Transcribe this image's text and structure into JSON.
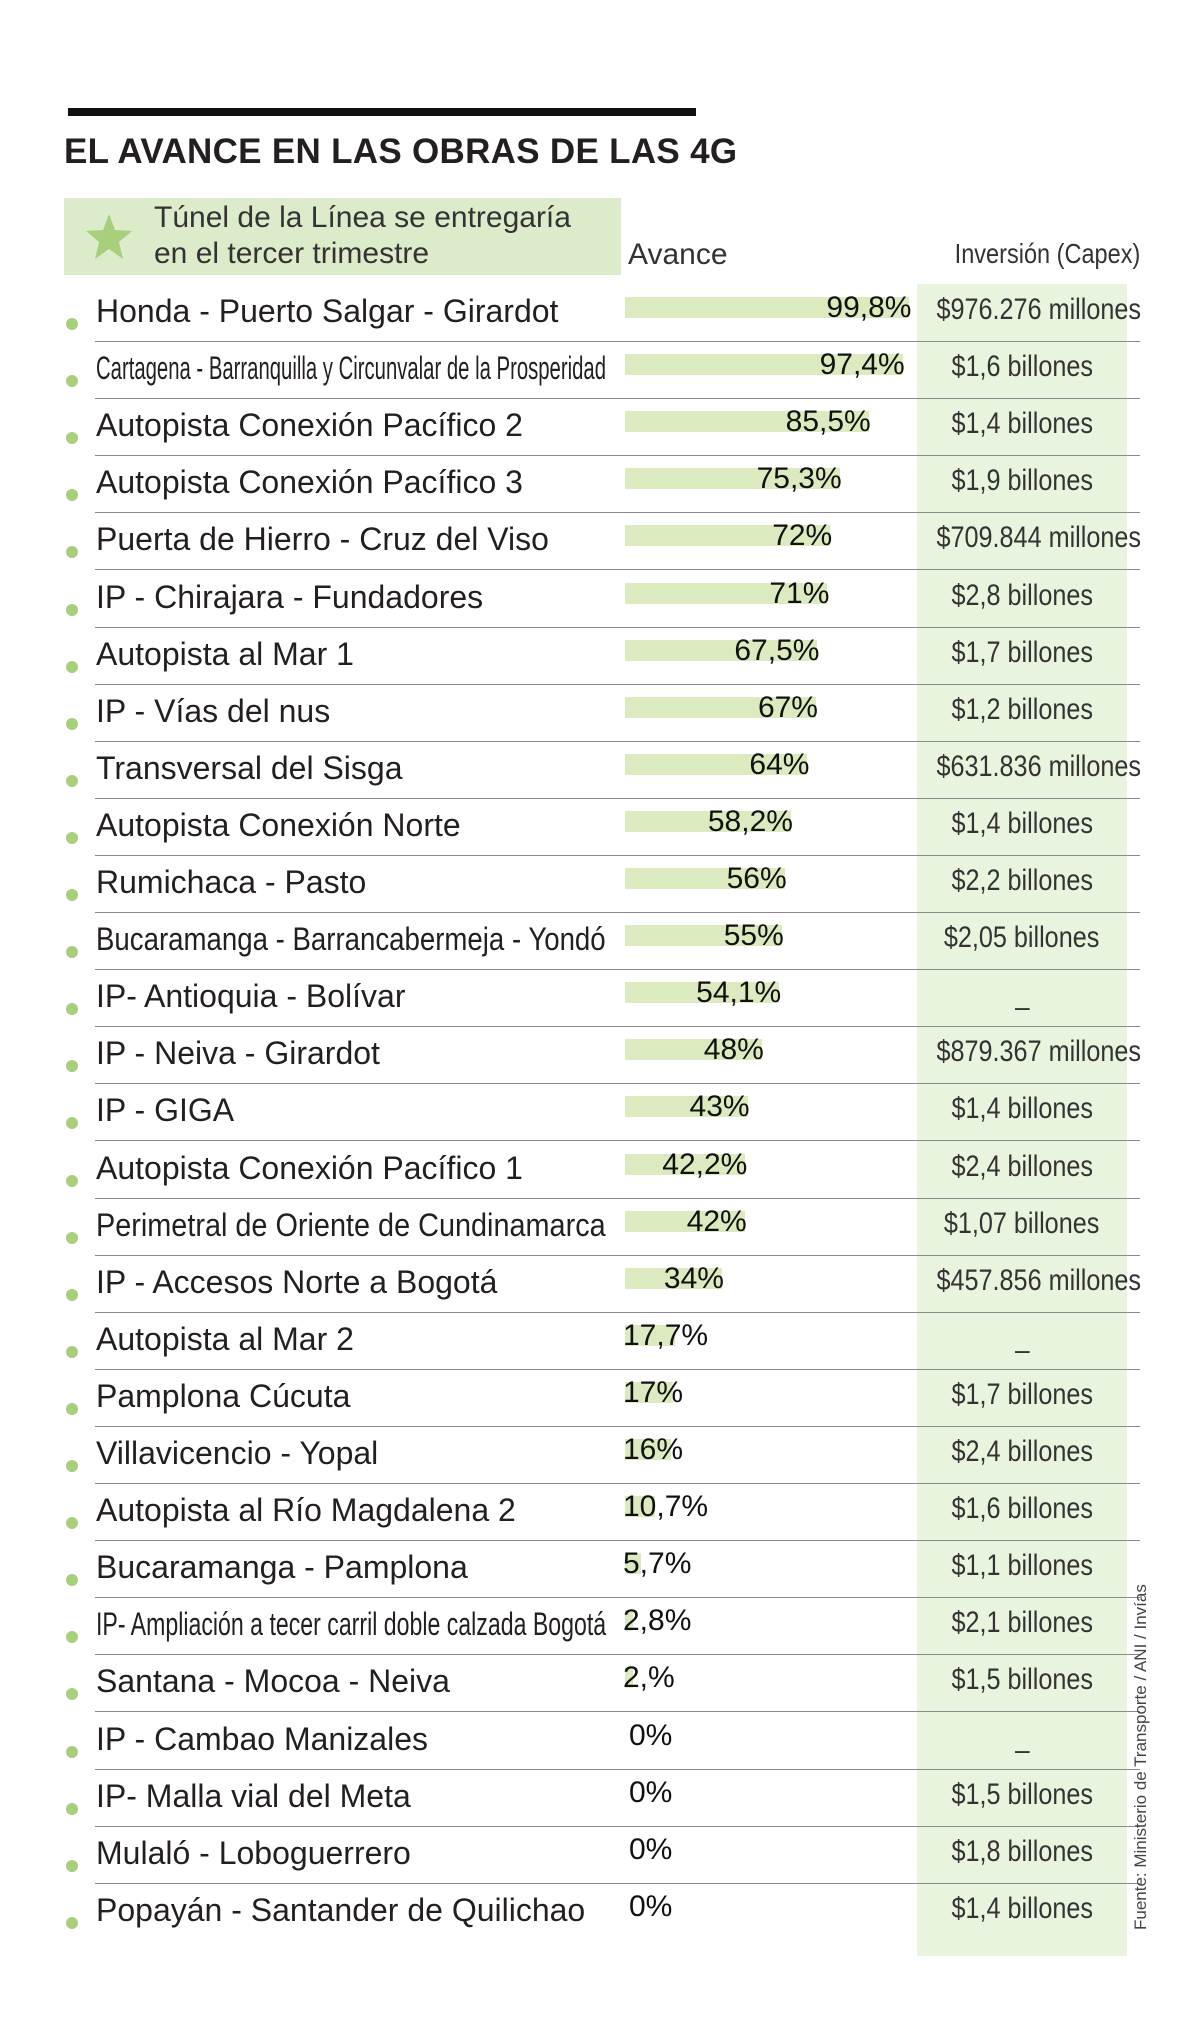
{
  "title": "EL AVANCE EN LAS OBRAS DE LAS 4G",
  "note": {
    "icon": "star-icon",
    "text": "Túnel de la Línea se entregaría\nen el tercer trimestre"
  },
  "headers": {
    "progress": "Avance",
    "investment": "Inversión (Capex)"
  },
  "source": "Fuente: Ministerio de Transporte / ANI / Invías",
  "colors": {
    "bar": "#dcebbf",
    "highlight": "#e9f4df",
    "dot": "#a7cf7c",
    "note_bg": "#dceccb",
    "star": "#a7cf7c"
  },
  "chart_data": {
    "type": "bar",
    "orientation": "horizontal",
    "title": "EL AVANCE EN LAS OBRAS DE LAS 4G",
    "xlabel": "Avance",
    "xlim": [
      0,
      100
    ],
    "categories": [
      "Honda - Puerto Salgar - Girardot",
      "Cartagena - Barranquilla y Circunvalar de la Prosperidad",
      "Autopista Conexión Pacífico 2",
      "Autopista Conexión Pacífico 3",
      "Puerta de Hierro - Cruz del Viso",
      "IP - Chirajara - Fundadores",
      "Autopista al Mar 1",
      "IP - Vías del nus",
      "Transversal del Sisga",
      "Autopista Conexión Norte",
      "Rumichaca - Pasto",
      "Bucaramanga - Barrancabermeja - Yondó",
      "IP- Antioquia - Bolívar",
      "IP - Neiva - Girardot",
      "IP - GIGA",
      "Autopista Conexión Pacífico 1",
      "Perimetral de Oriente de Cundinamarca",
      "IP - Accesos Norte a Bogotá",
      "Autopista al Mar 2",
      "Pamplona Cúcuta",
      "Villavicencio - Yopal",
      "Autopista al Río Magdalena 2",
      "Bucaramanga - Pamplona",
      "IP- Ampliación a tecer carril doble calzada Bogotá",
      "Santana - Mocoa - Neiva",
      "IP - Cambao Manizales",
      "IP- Malla vial del Meta",
      "Mulaló - Loboguerrero",
      "Popayán - Santander de Quilichao"
    ],
    "values": [
      99.8,
      97.4,
      85.5,
      75.3,
      72,
      71,
      67.5,
      67,
      64,
      58.2,
      56,
      55,
      54.1,
      48,
      43,
      42.2,
      42,
      34,
      17.7,
      17,
      16,
      10.7,
      5.7,
      2.8,
      2,
      0,
      0,
      0,
      0
    ],
    "value_labels": [
      "99,8%",
      "97,4%",
      "85,5%",
      "75,3%",
      "72%",
      "71%",
      "67,5%",
      "67%",
      "64%",
      "58,2%",
      "56%",
      "55%",
      "54,1%",
      "48%",
      "43%",
      "42,2%",
      "42%",
      "34%",
      "17,7%",
      "17%",
      "16%",
      "10,7%",
      "5,7%",
      "2,8%",
      "2,%",
      "0%",
      "0%",
      "0%",
      "0%"
    ],
    "investment": [
      "$976.276 millones",
      "$1,6 billones",
      "$1,4 billones",
      "$1,9 billones",
      "$709.844 millones",
      "$2,8 billones",
      "$1,7 billones",
      "$1,2 billones",
      "$631.836 millones",
      "$1,4 billones",
      "$2,2 billones",
      "$2,05 billones",
      "_",
      "$879.367 millones",
      "$1,4 billones",
      "$2,4 billones",
      "$1,07 billones",
      "$457.856 millones",
      "_",
      "$1,7 billones",
      "$2,4 billones",
      "$1,6 billones",
      "$1,1 billones",
      "$2,1 billones",
      "$1,5 billones",
      "_",
      "$1,5 billones",
      "$1,8 billones",
      "$1,4 billones"
    ],
    "grid": false,
    "legend": "none"
  }
}
